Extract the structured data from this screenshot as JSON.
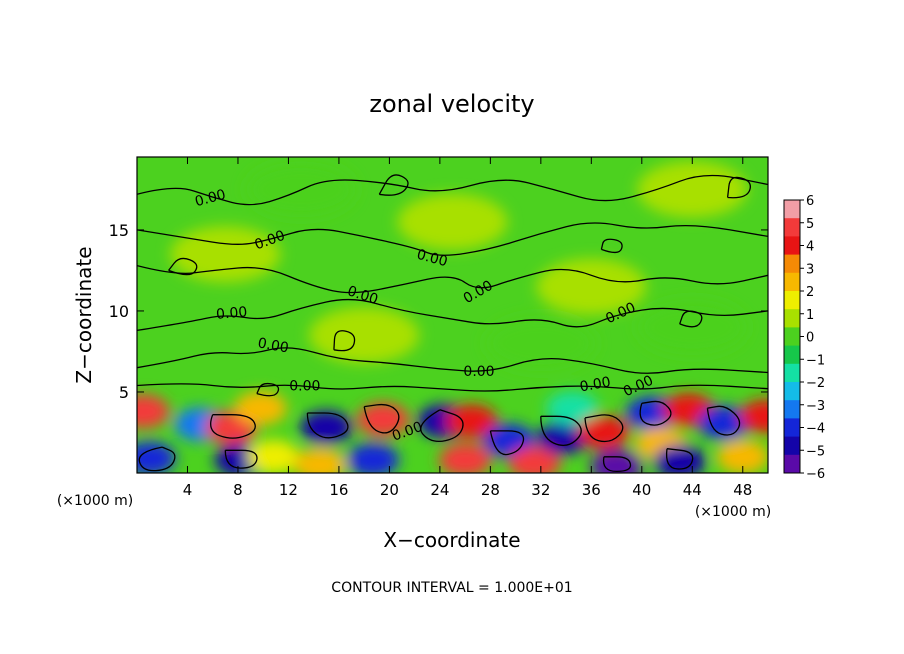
{
  "chart_data": {
    "type": "heatmap",
    "title": "zonal velocity",
    "xlabel": "X−coordinate",
    "ylabel": "Z−coordinate",
    "x_unit_left": "(×1000 m)",
    "x_unit_right": "(×1000 m)",
    "footer": "CONTOUR INTERVAL = 1.000E+01",
    "xlim": [
      0,
      50
    ],
    "ylim": [
      0,
      19.5
    ],
    "x_ticks": [
      4,
      8,
      12,
      16,
      20,
      24,
      28,
      32,
      36,
      40,
      44,
      48
    ],
    "y_ticks": [
      5,
      10,
      15
    ],
    "contour_labels": [
      {
        "text": "0.00",
        "x": 5.8,
        "y": 17.0,
        "angle": -15
      },
      {
        "text": "0.00",
        "x": 10.5,
        "y": 14.4,
        "angle": -20
      },
      {
        "text": "0.00",
        "x": 23.4,
        "y": 13.3,
        "angle": 15
      },
      {
        "text": "0.00",
        "x": 27.0,
        "y": 11.2,
        "angle": -30
      },
      {
        "text": "0.00",
        "x": 17.9,
        "y": 11.0,
        "angle": 18
      },
      {
        "text": "0.00",
        "x": 7.5,
        "y": 9.9,
        "angle": -5
      },
      {
        "text": "0.00",
        "x": 38.3,
        "y": 9.9,
        "angle": -25
      },
      {
        "text": "0.00",
        "x": 10.8,
        "y": 7.9,
        "angle": 10
      },
      {
        "text": "0.00",
        "x": 13.3,
        "y": 5.4,
        "angle": 0
      },
      {
        "text": "0.00",
        "x": 27.1,
        "y": 6.3,
        "angle": 0
      },
      {
        "text": "0.00",
        "x": 36.3,
        "y": 5.5,
        "angle": -10
      },
      {
        "text": "0.00",
        "x": 39.7,
        "y": 5.4,
        "angle": -25
      },
      {
        "text": "0.00",
        "x": 21.4,
        "y": 2.6,
        "angle": -20
      }
    ],
    "colorbar": {
      "ticks": [
        "6",
        "5",
        "4",
        "3",
        "2",
        "1",
        "0",
        "−1",
        "−2",
        "−3",
        "−4",
        "−5",
        "−6"
      ],
      "colors": [
        "#f29ea6",
        "#f33a3a",
        "#e81414",
        "#f58a05",
        "#f7b800",
        "#eeee00",
        "#a8e000",
        "#4cd11f",
        "#16c74a",
        "#14e0a4",
        "#14bce8",
        "#1478f0",
        "#1426d8",
        "#1404a8",
        "#5a0aa8"
      ]
    },
    "field_features": [
      {
        "x": 0.5,
        "y": 3.8,
        "value": 5
      },
      {
        "x": 1.0,
        "y": 0.9,
        "value": -4
      },
      {
        "x": 5.0,
        "y": 3.0,
        "value": -3
      },
      {
        "x": 7.5,
        "y": 2.8,
        "value": 5
      },
      {
        "x": 9.8,
        "y": 4.0,
        "value": 3
      },
      {
        "x": 8.2,
        "y": 0.8,
        "value": -5
      },
      {
        "x": 10.8,
        "y": 1.0,
        "value": 2
      },
      {
        "x": 15.0,
        "y": 2.8,
        "value": -5
      },
      {
        "x": 14.5,
        "y": 0.5,
        "value": 3
      },
      {
        "x": 19.5,
        "y": 3.3,
        "value": 5
      },
      {
        "x": 18.7,
        "y": 0.8,
        "value": -4
      },
      {
        "x": 24.3,
        "y": 3.2,
        "value": -5
      },
      {
        "x": 26.5,
        "y": 3.2,
        "value": 4
      },
      {
        "x": 26.0,
        "y": 0.8,
        "value": 5
      },
      {
        "x": 29.5,
        "y": 2.0,
        "value": -4
      },
      {
        "x": 31.5,
        "y": 0.6,
        "value": 5
      },
      {
        "x": 33.8,
        "y": 2.2,
        "value": -5
      },
      {
        "x": 34.5,
        "y": 4.0,
        "value": -2
      },
      {
        "x": 37.0,
        "y": 2.5,
        "value": 4
      },
      {
        "x": 38.0,
        "y": 0.4,
        "value": -6
      },
      {
        "x": 40.8,
        "y": 3.7,
        "value": -4
      },
      {
        "x": 41.5,
        "y": 1.8,
        "value": 3
      },
      {
        "x": 43.7,
        "y": 3.9,
        "value": 4
      },
      {
        "x": 43.0,
        "y": 0.7,
        "value": -5
      },
      {
        "x": 46.5,
        "y": 3.1,
        "value": -4
      },
      {
        "x": 48.0,
        "y": 1.0,
        "value": 3
      },
      {
        "x": 49.8,
        "y": 3.5,
        "value": 4
      },
      {
        "x": 7.0,
        "y": 13.5,
        "value": 1
      },
      {
        "x": 25.0,
        "y": 15.5,
        "value": 1
      },
      {
        "x": 36.0,
        "y": 11.5,
        "value": 1
      },
      {
        "x": 18.0,
        "y": 8.5,
        "value": 1
      },
      {
        "x": 44.0,
        "y": 17.5,
        "value": 1
      },
      {
        "x": 13.0,
        "y": 17.5,
        "value": 0
      },
      {
        "x": 32.0,
        "y": 8.0,
        "value": 0
      },
      {
        "x": 44.0,
        "y": 9.0,
        "value": 0
      }
    ],
    "contour_lines": [
      [
        [
          0.0,
          5.4
        ],
        [
          4.0,
          5.6
        ],
        [
          8.0,
          5.2
        ],
        [
          12.0,
          5.5
        ],
        [
          16.0,
          5.1
        ],
        [
          20.0,
          5.4
        ],
        [
          24.0,
          5.2
        ],
        [
          28.0,
          5.0
        ],
        [
          32.0,
          5.3
        ],
        [
          36.0,
          5.4
        ],
        [
          40.0,
          5.1
        ],
        [
          44.0,
          5.5
        ],
        [
          50.0,
          5.2
        ]
      ],
      [
        [
          0.0,
          6.5
        ],
        [
          3.0,
          6.9
        ],
        [
          6.0,
          7.5
        ],
        [
          9.0,
          7.3
        ],
        [
          12.0,
          7.9
        ],
        [
          16.0,
          7.0
        ],
        [
          20.0,
          6.8
        ],
        [
          24.0,
          6.4
        ],
        [
          28.0,
          6.2
        ],
        [
          32.0,
          7.2
        ],
        [
          36.0,
          6.8
        ],
        [
          40.0,
          6.0
        ],
        [
          44.0,
          6.5
        ],
        [
          50.0,
          6.2
        ]
      ],
      [
        [
          0.0,
          8.8
        ],
        [
          4.0,
          9.3
        ],
        [
          7.0,
          9.8
        ],
        [
          10.0,
          9.4
        ],
        [
          13.0,
          10.2
        ],
        [
          17.0,
          10.9
        ],
        [
          21.0,
          10.0
        ],
        [
          25.0,
          9.5
        ],
        [
          28.0,
          9.1
        ],
        [
          32.0,
          9.6
        ],
        [
          35.0,
          8.8
        ],
        [
          38.0,
          9.8
        ],
        [
          42.0,
          10.3
        ],
        [
          46.0,
          9.6
        ],
        [
          50.0,
          10.0
        ]
      ],
      [
        [
          0.0,
          12.8
        ],
        [
          3.0,
          12.2
        ],
        [
          6.0,
          12.5
        ],
        [
          10.0,
          12.8
        ],
        [
          14.0,
          11.5
        ],
        [
          17.0,
          11.0
        ],
        [
          21.0,
          11.6
        ],
        [
          25.0,
          12.3
        ],
        [
          27.0,
          11.2
        ],
        [
          30.0,
          12.0
        ],
        [
          34.0,
          12.8
        ],
        [
          38.0,
          11.6
        ],
        [
          42.0,
          12.2
        ],
        [
          46.0,
          11.5
        ],
        [
          50.0,
          12.2
        ]
      ],
      [
        [
          0.0,
          15.0
        ],
        [
          4.0,
          14.5
        ],
        [
          8.0,
          14.0
        ],
        [
          10.5,
          14.4
        ],
        [
          14.0,
          15.2
        ],
        [
          18.0,
          14.6
        ],
        [
          22.0,
          13.9
        ],
        [
          24.0,
          13.3
        ],
        [
          28.0,
          13.8
        ],
        [
          32.0,
          14.8
        ],
        [
          36.0,
          15.6
        ],
        [
          40.0,
          15.0
        ],
        [
          44.0,
          15.4
        ],
        [
          50.0,
          14.6
        ]
      ],
      [
        [
          0.0,
          17.2
        ],
        [
          3.0,
          17.8
        ],
        [
          6.0,
          17.0
        ],
        [
          9.0,
          16.4
        ],
        [
          12.0,
          17.1
        ],
        [
          15.0,
          18.2
        ],
        [
          20.0,
          17.9
        ],
        [
          24.0,
          17.2
        ],
        [
          29.0,
          18.3
        ],
        [
          33.0,
          17.5
        ],
        [
          37.0,
          16.6
        ],
        [
          41.0,
          17.4
        ],
        [
          45.0,
          18.6
        ],
        [
          50.0,
          17.8
        ]
      ],
      [
        [
          24.0,
          3.9
        ],
        [
          22.0,
          3.0
        ],
        [
          23.3,
          1.8
        ],
        [
          25.6,
          2.2
        ],
        [
          26.0,
          3.4
        ],
        [
          24.0,
          3.9
        ]
      ],
      [
        [
          6.0,
          3.6
        ],
        [
          5.5,
          2.6
        ],
        [
          7.6,
          2.0
        ],
        [
          9.6,
          2.6
        ],
        [
          9.0,
          3.6
        ],
        [
          6.0,
          3.6
        ]
      ],
      [
        [
          13.5,
          3.7
        ],
        [
          13.5,
          2.8
        ],
        [
          15.0,
          2.0
        ],
        [
          17.0,
          2.6
        ],
        [
          16.2,
          3.7
        ],
        [
          13.5,
          3.7
        ]
      ],
      [
        [
          18.0,
          4.1
        ],
        [
          18.3,
          2.8
        ],
        [
          20.0,
          2.3
        ],
        [
          21.0,
          3.5
        ],
        [
          20.0,
          4.3
        ],
        [
          18.0,
          4.1
        ]
      ],
      [
        [
          32.0,
          3.5
        ],
        [
          32.0,
          2.2
        ],
        [
          34.0,
          1.5
        ],
        [
          35.5,
          2.5
        ],
        [
          34.5,
          3.5
        ],
        [
          32.0,
          3.5
        ]
      ],
      [
        [
          35.5,
          3.4
        ],
        [
          35.6,
          2.2
        ],
        [
          37.5,
          1.8
        ],
        [
          38.8,
          2.8
        ],
        [
          37.6,
          3.7
        ],
        [
          35.5,
          3.4
        ]
      ],
      [
        [
          40.0,
          4.3
        ],
        [
          39.6,
          3.3
        ],
        [
          41.2,
          2.8
        ],
        [
          42.6,
          3.6
        ],
        [
          41.6,
          4.5
        ],
        [
          40.0,
          4.3
        ]
      ],
      [
        [
          45.2,
          4.0
        ],
        [
          45.4,
          2.6
        ],
        [
          47.2,
          2.2
        ],
        [
          48.0,
          3.2
        ],
        [
          46.6,
          4.2
        ],
        [
          45.2,
          4.0
        ]
      ],
      [
        [
          2.0,
          1.6
        ],
        [
          0.0,
          1.3
        ],
        [
          0.4,
          0.1
        ],
        [
          2.6,
          0.2
        ],
        [
          3.2,
          1.2
        ],
        [
          2.0,
          1.6
        ]
      ],
      [
        [
          7.0,
          1.4
        ],
        [
          7.0,
          0.3
        ],
        [
          9.4,
          0.3
        ],
        [
          9.6,
          1.4
        ],
        [
          7.0,
          1.4
        ]
      ],
      [
        [
          28.0,
          2.6
        ],
        [
          28.4,
          1.0
        ],
        [
          30.4,
          1.3
        ],
        [
          30.8,
          2.6
        ],
        [
          28.0,
          2.6
        ]
      ],
      [
        [
          37.0,
          1.0
        ],
        [
          36.8,
          0.1
        ],
        [
          39.2,
          0.1
        ],
        [
          39.0,
          1.0
        ],
        [
          37.0,
          1.0
        ]
      ],
      [
        [
          42.0,
          1.5
        ],
        [
          41.8,
          0.3
        ],
        [
          43.8,
          0.2
        ],
        [
          44.2,
          1.3
        ],
        [
          42.0,
          1.5
        ]
      ],
      [
        [
          2.5,
          12.5
        ],
        [
          4.2,
          12.0
        ],
        [
          5.0,
          12.9
        ],
        [
          3.4,
          13.4
        ],
        [
          2.5,
          12.5
        ]
      ],
      [
        [
          15.6,
          7.6
        ],
        [
          17.0,
          7.4
        ],
        [
          17.4,
          8.6
        ],
        [
          15.7,
          8.9
        ],
        [
          15.6,
          7.6
        ]
      ],
      [
        [
          19.2,
          17.2
        ],
        [
          20.7,
          17.0
        ],
        [
          21.8,
          18.0
        ],
        [
          20.2,
          18.6
        ],
        [
          19.2,
          17.2
        ]
      ],
      [
        [
          36.8,
          13.8
        ],
        [
          38.2,
          13.4
        ],
        [
          38.6,
          14.3
        ],
        [
          37.0,
          14.5
        ],
        [
          36.8,
          13.8
        ]
      ],
      [
        [
          43.0,
          9.2
        ],
        [
          44.3,
          8.8
        ],
        [
          45.0,
          9.8
        ],
        [
          43.4,
          10.1
        ],
        [
          43.0,
          9.2
        ]
      ],
      [
        [
          46.8,
          17.0
        ],
        [
          48.3,
          16.9
        ],
        [
          48.8,
          18.0
        ],
        [
          47.0,
          18.4
        ],
        [
          46.8,
          17.0
        ]
      ],
      [
        [
          9.5,
          4.9
        ],
        [
          10.9,
          4.6
        ],
        [
          11.4,
          5.4
        ],
        [
          9.9,
          5.6
        ],
        [
          9.5,
          4.9
        ]
      ]
    ]
  }
}
